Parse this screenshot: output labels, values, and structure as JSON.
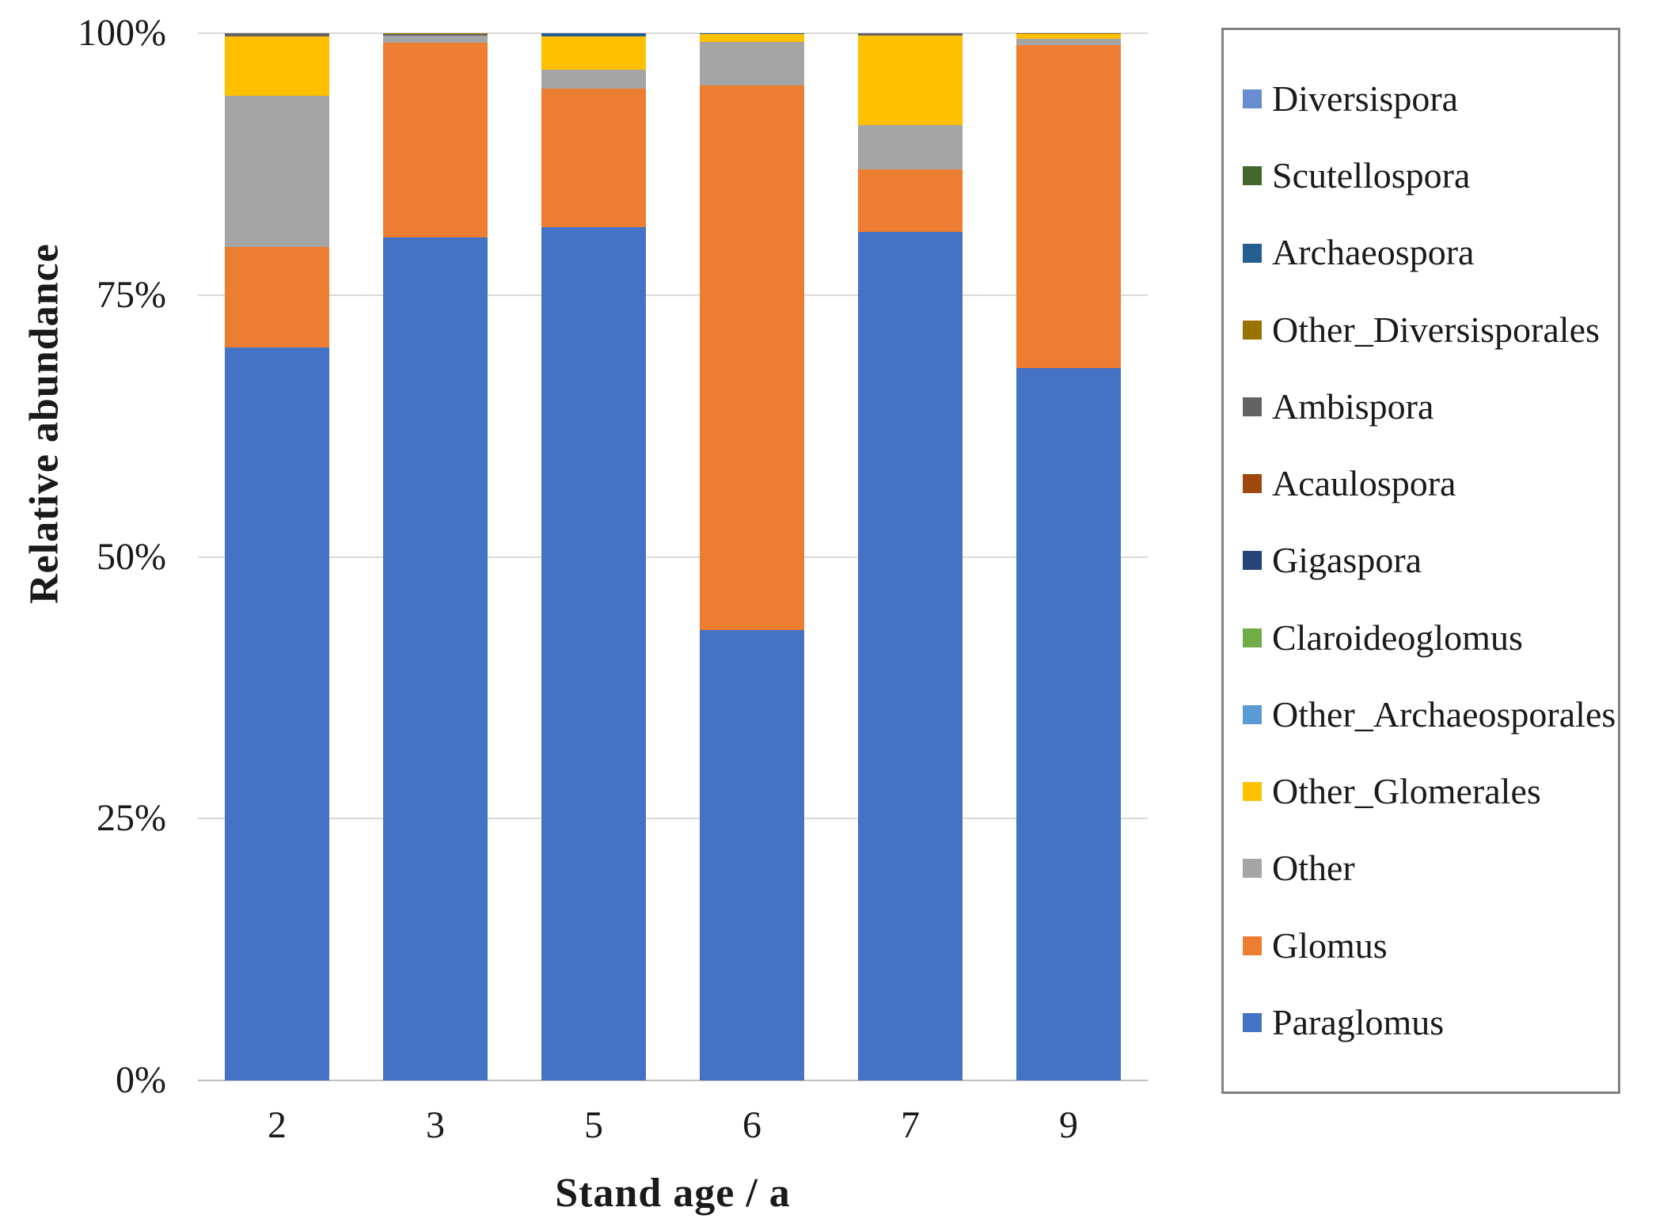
{
  "chart_data": {
    "type": "bar",
    "stacked": true,
    "orientation": "vertical",
    "title": "",
    "xlabel": "Stand age / a",
    "ylabel": "Relative abundance",
    "ylim": [
      0,
      100
    ],
    "grid": "horizontal",
    "legend_position": "right",
    "legend_order": "reverse-of-stack",
    "categories": [
      "2",
      "3",
      "5",
      "6",
      "7",
      "9"
    ],
    "y_ticks": [
      {
        "label": "0%",
        "value": 0
      },
      {
        "label": "25%",
        "value": 25
      },
      {
        "label": "50%",
        "value": 50
      },
      {
        "label": "75%",
        "value": 75
      },
      {
        "label": "100%",
        "value": 100
      }
    ],
    "series": [
      {
        "name": "Paraglomus",
        "color": "#4472C4",
        "values": [
          70.0,
          80.5,
          81.5,
          43.0,
          81.0,
          68.0
        ]
      },
      {
        "name": "Glomus",
        "color": "#ED7D31",
        "values": [
          9.6,
          18.6,
          13.2,
          52.0,
          6.0,
          30.9
        ]
      },
      {
        "name": "Other",
        "color": "#A5A5A5",
        "values": [
          14.4,
          0.7,
          1.8,
          4.2,
          4.2,
          0.6
        ]
      },
      {
        "name": "Other_Glomerales",
        "color": "#FFC000",
        "values": [
          5.7,
          0,
          3.2,
          0.7,
          8.6,
          0.4
        ]
      },
      {
        "name": "Other_Archaeosporales",
        "color": "#5B9BD5",
        "values": [
          0,
          0,
          0,
          0,
          0,
          0
        ]
      },
      {
        "name": "Claroideoglomus",
        "color": "#70AD47",
        "values": [
          0,
          0,
          0,
          0,
          0,
          0
        ]
      },
      {
        "name": "Gigaspora",
        "color": "#264478",
        "values": [
          0,
          0,
          0,
          0,
          0,
          0
        ]
      },
      {
        "name": "Acaulospora",
        "color": "#9E480E",
        "values": [
          0,
          0,
          0,
          0,
          0,
          0
        ]
      },
      {
        "name": "Ambispora",
        "color": "#636363",
        "values": [
          0.3,
          0.1,
          0,
          0,
          0.2,
          0
        ]
      },
      {
        "name": "Other_Diversisporales",
        "color": "#997300",
        "values": [
          0,
          0.1,
          0,
          0,
          0,
          0.1
        ]
      },
      {
        "name": "Archaeospora",
        "color": "#255E91",
        "values": [
          0,
          0,
          0.3,
          0.1,
          0,
          0
        ]
      },
      {
        "name": "Scutellospora",
        "color": "#43682B",
        "values": [
          0,
          0,
          0,
          0,
          0,
          0
        ]
      },
      {
        "name": "Diversispora",
        "color": "#698ED0",
        "values": [
          0,
          0,
          0,
          0,
          0,
          0
        ]
      }
    ]
  }
}
